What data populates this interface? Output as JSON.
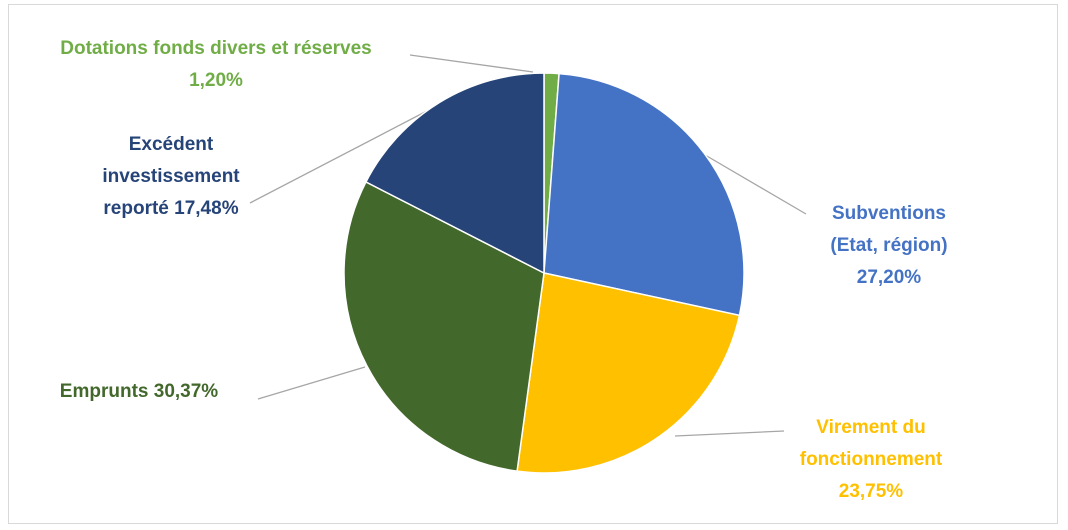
{
  "chart_data": {
    "type": "pie",
    "title": "",
    "slices": [
      {
        "key": "dotations",
        "label_lines": [
          "Dotations fonds divers et réserves",
          "1,20%"
        ],
        "value": 1.2,
        "color": "#70ad47"
      },
      {
        "key": "subventions",
        "label_lines": [
          "Subventions",
          "(Etat, région)",
          "27,20%"
        ],
        "value": 27.2,
        "color": "#4472c4"
      },
      {
        "key": "virement",
        "label_lines": [
          "Virement du",
          "fonctionnement",
          "23,75%"
        ],
        "value": 23.75,
        "color": "#ffc000"
      },
      {
        "key": "emprunts",
        "label_lines": [
          "Emprunts 30,37%"
        ],
        "value": 30.37,
        "color": "#43682b"
      },
      {
        "key": "excedent",
        "label_lines": [
          "Excédent",
          "investissement",
          "reporté 17,48%"
        ],
        "value": 17.48,
        "color": "#264478"
      }
    ]
  }
}
